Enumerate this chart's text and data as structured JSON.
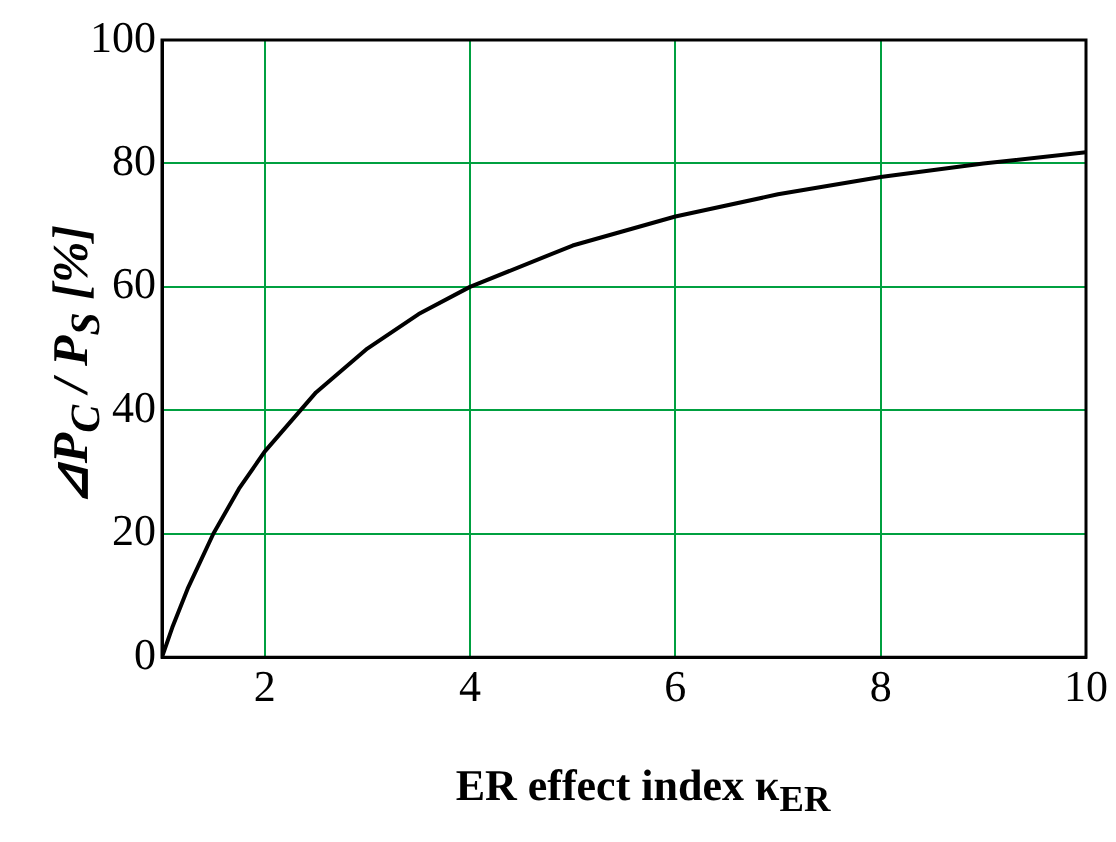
{
  "chart_data": {
    "type": "line",
    "xlabel": "ER effect index κ$_{ER}$",
    "ylabel": "⊿P$_{C}$ / P$_{S}$ [%]",
    "series": [
      {
        "color": "#000000",
        "x": [
          1,
          1.1,
          1.25,
          1.5,
          1.75,
          2,
          2.5,
          3,
          3.5,
          4,
          5,
          6,
          7,
          8,
          9,
          10
        ],
        "values": [
          0,
          4.8,
          11.1,
          20,
          27.3,
          33.3,
          42.9,
          50,
          55.6,
          60,
          66.7,
          71.4,
          75,
          77.8,
          80,
          81.8
        ]
      }
    ],
    "xlim": [
      1,
      10
    ],
    "xticks": [
      2,
      4,
      6,
      8,
      10
    ],
    "ylim": [
      0,
      100
    ],
    "yticks": [
      0,
      20,
      40,
      60,
      80,
      100
    ],
    "grid": true,
    "legend": false,
    "marker": "none",
    "line_style": "solid"
  }
}
